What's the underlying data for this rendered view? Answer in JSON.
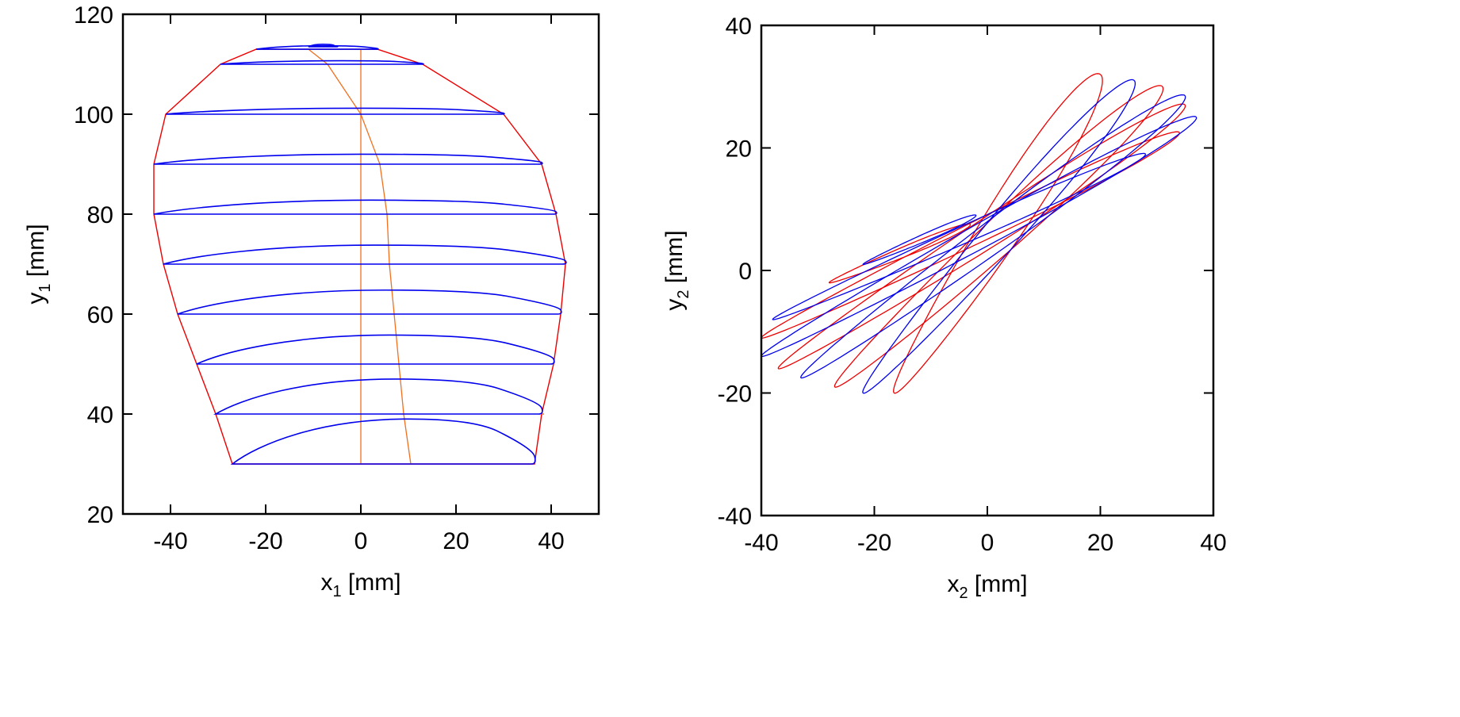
{
  "colors": {
    "blue": "#0000ee",
    "red": "#ee0000",
    "orange": "#f07020",
    "axis": "#000000"
  },
  "chart_data": [
    {
      "type": "line",
      "xlabel": {
        "base": "x",
        "sub": "1",
        "unit": " [mm]"
      },
      "ylabel": {
        "base": "y",
        "sub": "1",
        "unit": " [mm]"
      },
      "xlim": [
        -50,
        50
      ],
      "ylim": [
        20,
        120
      ],
      "xticks": [
        -40,
        -20,
        0,
        20,
        40
      ],
      "yticks": [
        20,
        40,
        60,
        80,
        100,
        120
      ],
      "grid": false,
      "loops": [
        {
          "y": 30,
          "x_left": -27,
          "x_right": 36.5,
          "peak_x": 10,
          "peak_y": 39
        },
        {
          "y": 40,
          "x_left": -30.5,
          "x_right": 38,
          "peak_x": 7,
          "peak_y": 47
        },
        {
          "y": 50,
          "x_left": -34.5,
          "x_right": 40.5,
          "peak_x": 6,
          "peak_y": 55.8
        },
        {
          "y": 60,
          "x_left": -38.5,
          "x_right": 42,
          "peak_x": 5,
          "peak_y": 64.8
        },
        {
          "y": 70,
          "x_left": -41.5,
          "x_right": 43,
          "peak_x": 3,
          "peak_y": 73.8
        },
        {
          "y": 80,
          "x_left": -43.5,
          "x_right": 41,
          "peak_x": 2,
          "peak_y": 82.8
        },
        {
          "y": 90,
          "x_left": -43.5,
          "x_right": 38,
          "peak_x": 0,
          "peak_y": 92
        },
        {
          "y": 100,
          "x_left": -41,
          "x_right": 30,
          "peak_x": 0,
          "peak_y": 101.2
        },
        {
          "y": 110,
          "x_left": -29.5,
          "x_right": 13,
          "peak_x": -4,
          "peak_y": 110.7
        },
        {
          "y": 113,
          "x_left": -22,
          "x_right": 3.5,
          "peak_x": -8,
          "peak_y": 113.7
        },
        {
          "y": 113.5,
          "x_left": -11,
          "x_right": -5,
          "peak_x": -8,
          "peak_y": 114
        }
      ],
      "vertical_line": {
        "x": 0,
        "y_range": [
          30,
          113
        ]
      },
      "curved_line": [
        [
          10.5,
          30
        ],
        [
          9,
          40
        ],
        [
          8,
          50
        ],
        [
          7,
          60
        ],
        [
          6,
          70
        ],
        [
          5.5,
          80
        ],
        [
          4,
          90
        ],
        [
          0,
          100
        ],
        [
          -7,
          110
        ],
        [
          -11,
          113
        ]
      ]
    },
    {
      "type": "line",
      "xlabel": {
        "base": "x",
        "sub": "2",
        "unit": " [mm]"
      },
      "ylabel": {
        "base": "y",
        "sub": "2",
        "unit": " [mm]"
      },
      "xlim": [
        -40,
        40
      ],
      "ylim": [
        -40,
        40
      ],
      "xticks": [
        -40,
        -20,
        0,
        20,
        40
      ],
      "yticks": [
        -40,
        -20,
        0,
        20,
        40
      ],
      "grid": false,
      "red_loops": [
        {
          "tip_a": [
            -16.5,
            -20
          ],
          "tip_b": [
            20,
            32
          ],
          "half_width": 3.5
        },
        {
          "tip_a": [
            -27,
            -19
          ],
          "tip_b": [
            31,
            30
          ],
          "half_width": 3
        },
        {
          "tip_a": [
            -37,
            -16
          ],
          "tip_b": [
            35,
            27
          ],
          "half_width": 2.4
        },
        {
          "tip_a": [
            -40,
            -11
          ],
          "tip_b": [
            34,
            22.5
          ],
          "half_width": 1.8
        },
        {
          "tip_a": [
            -28,
            -2
          ],
          "tip_b": [
            -3,
            7.5
          ],
          "half_width": 0.8
        }
      ],
      "blue_loops": [
        {
          "tip_a": [
            -22,
            -20
          ],
          "tip_b": [
            26,
            31
          ],
          "half_width": 3
        },
        {
          "tip_a": [
            -33,
            -17.5
          ],
          "tip_b": [
            35,
            28.5
          ],
          "half_width": 2.6
        },
        {
          "tip_a": [
            -40,
            -14
          ],
          "tip_b": [
            37,
            25
          ],
          "half_width": 2
        },
        {
          "tip_a": [
            -38,
            -8
          ],
          "tip_b": [
            28,
            19
          ],
          "half_width": 1.4
        },
        {
          "tip_a": [
            -22,
            1
          ],
          "tip_b": [
            -2,
            9
          ],
          "half_width": 0.6
        }
      ]
    }
  ]
}
